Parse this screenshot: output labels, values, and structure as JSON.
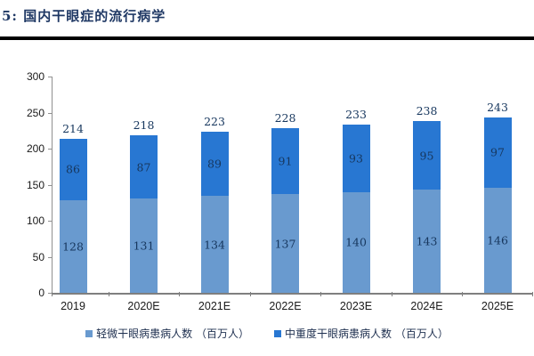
{
  "page": {
    "title": "5: 国内干眼症的流行病学"
  },
  "chart_data": {
    "type": "bar",
    "stacked": true,
    "title": "5: 国内干眼症的流行病学",
    "categories": [
      "2019",
      "2020E",
      "2021E",
      "2022E",
      "2023E",
      "2024E",
      "2025E"
    ],
    "series": [
      {
        "name": "轻微干眼病患病人数 （百万人）",
        "color": "#699ACF",
        "values": [
          128,
          131,
          134,
          137,
          140,
          143,
          146
        ]
      },
      {
        "name": "中重度干眼病患病人数 （百万人）",
        "color": "#2877D2",
        "values": [
          86,
          87,
          89,
          91,
          93,
          95,
          97
        ]
      }
    ],
    "totals": [
      214,
      218,
      223,
      228,
      233,
      238,
      243
    ],
    "ylim": [
      0,
      300
    ],
    "ytick_step": 50,
    "grid": false,
    "legend_position": "bottom",
    "value_labels": "inside-segments-plus-total"
  },
  "colors": {
    "title": "#1F3864",
    "rule": "#000000",
    "axis": "#7f7f7f",
    "label": "#17375E",
    "background": "#ffffff"
  }
}
